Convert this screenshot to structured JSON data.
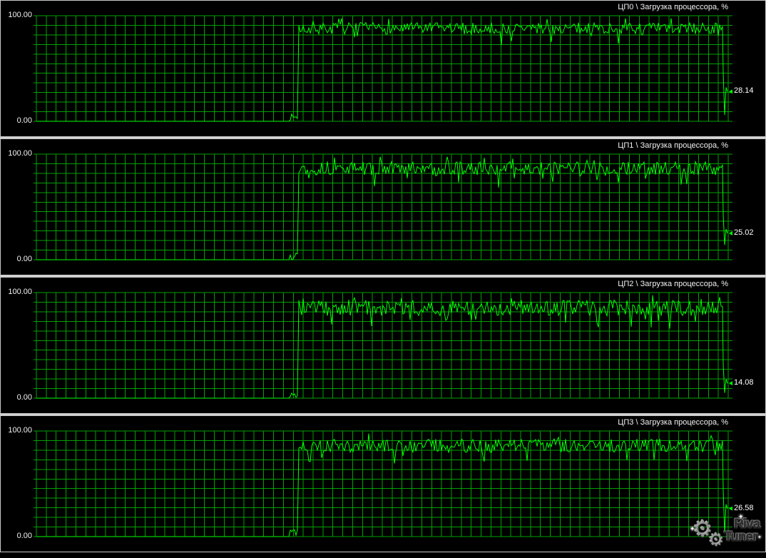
{
  "app": {
    "name": "RivaTuner — hardware monitoring graphs"
  },
  "colors": {
    "background": "#000000",
    "grid": "#00a200",
    "line": "#00ff00",
    "label": "#f2f2f2",
    "value": "#ffffff",
    "separator": "#d2d2d2"
  },
  "grid": {
    "cols": 70,
    "rows": 11
  },
  "watermark": {
    "line1": "Riva",
    "line2": "Tuner",
    "gear_icon": "⚙",
    "sparkle": "✦"
  },
  "chart_data": [
    {
      "type": "line",
      "title": "ЦП0 \\ Загрузка процессора, %",
      "ylabel_top": "100.00",
      "ylabel_bottom": "0.00",
      "ylim": [
        0,
        100
      ],
      "legend": "none",
      "grid_on": true,
      "current_value": 28.14,
      "current_value_label": "28.14",
      "line_color": "#00ff00",
      "series_profile": {
        "seed": 7,
        "segments": [
          {
            "mode": "flat",
            "to_frac": 0.366,
            "value": 0
          },
          {
            "mode": "noise",
            "to_frac": 0.378,
            "mean": 4,
            "amp": 3
          },
          {
            "mode": "noise",
            "to_frac": 1.0,
            "mean": 88,
            "amp": 5.5
          }
        ],
        "tail": {
          "dip": 6,
          "end": 28.14
        }
      }
    },
    {
      "type": "line",
      "title": "ЦП1 \\ Загрузка процессора, %",
      "ylabel_top": "100.00",
      "ylabel_bottom": "0.00",
      "ylim": [
        0,
        100
      ],
      "legend": "none",
      "grid_on": true,
      "current_value": 25.02,
      "current_value_label": "25.02",
      "line_color": "#00ff00",
      "series_profile": {
        "seed": 13,
        "segments": [
          {
            "mode": "flat",
            "to_frac": 0.366,
            "value": 0
          },
          {
            "mode": "noise",
            "to_frac": 0.378,
            "mean": 4,
            "amp": 3
          },
          {
            "mode": "noise",
            "to_frac": 1.0,
            "mean": 86.5,
            "amp": 6.5
          }
        ],
        "tail": {
          "dip": 14,
          "end": 25.02
        }
      }
    },
    {
      "type": "line",
      "title": "ЦП2 \\ Загрузка процессора, %",
      "ylabel_top": "100.00",
      "ylabel_bottom": "0.00",
      "ylim": [
        0,
        100
      ],
      "legend": "none",
      "grid_on": true,
      "current_value": 14.08,
      "current_value_label": "14.08",
      "line_color": "#00ff00",
      "series_profile": {
        "seed": 23,
        "segments": [
          {
            "mode": "flat",
            "to_frac": 0.366,
            "value": 0
          },
          {
            "mode": "noise",
            "to_frac": 0.378,
            "mean": 4,
            "amp": 3
          },
          {
            "mode": "noise",
            "to_frac": 1.0,
            "mean": 85.5,
            "amp": 7.5
          }
        ],
        "tail": {
          "dip": 5,
          "end": 14.08
        }
      }
    },
    {
      "type": "line",
      "title": "ЦП3 \\ Загрузка процессора, %",
      "ylabel_top": "100.00",
      "ylabel_bottom": "0.00",
      "ylim": [
        0,
        100
      ],
      "legend": "none",
      "grid_on": true,
      "current_value": 26.58,
      "current_value_label": "26.58",
      "line_color": "#00ff00",
      "series_profile": {
        "seed": 41,
        "segments": [
          {
            "mode": "flat",
            "to_frac": 0.366,
            "value": 0
          },
          {
            "mode": "noise",
            "to_frac": 0.378,
            "mean": 4,
            "amp": 3
          },
          {
            "mode": "noise",
            "to_frac": 1.0,
            "mean": 86,
            "amp": 6.5
          }
        ],
        "tail": {
          "dip": 3,
          "end": 26.58
        }
      }
    }
  ]
}
